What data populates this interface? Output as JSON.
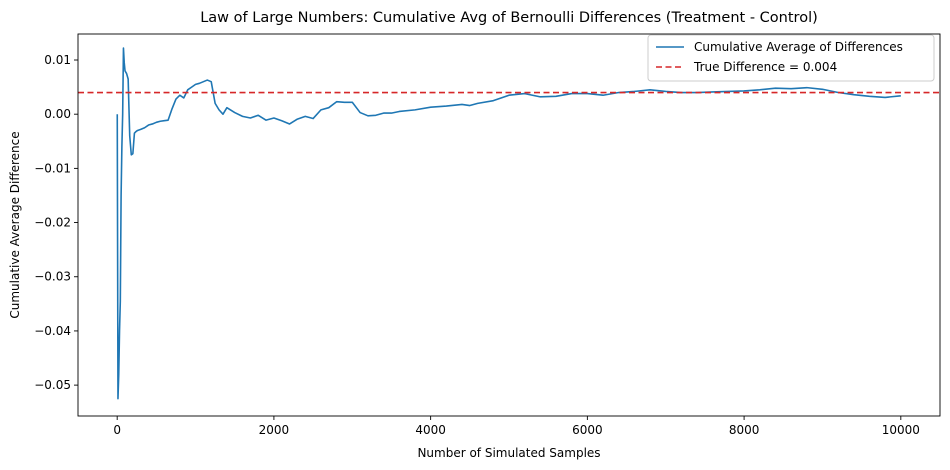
{
  "chart_data": {
    "type": "line",
    "title": "Law of Large Numbers: Cumulative Avg of Bernoulli Differences (Treatment - Control)",
    "xlabel": "Number of Simulated Samples",
    "ylabel": "Cumulative Average Difference",
    "xlim": [
      -500,
      10500
    ],
    "ylim": [
      -0.0557,
      0.0148
    ],
    "xticks": [
      0,
      2000,
      4000,
      6000,
      8000,
      10000
    ],
    "xtick_labels": [
      "0",
      "2000",
      "4000",
      "6000",
      "8000",
      "10000"
    ],
    "yticks": [
      -0.05,
      -0.04,
      -0.03,
      -0.02,
      -0.01,
      0.0,
      0.01
    ],
    "ytick_labels": [
      "−0.05",
      "−0.04",
      "−0.03",
      "−0.02",
      "−0.01",
      "0.00",
      "0.01"
    ],
    "grid": false,
    "legend_position": "top-right",
    "series": [
      {
        "name": "Cumulative Average of Differences",
        "color": "#1f77b4",
        "style": "solid",
        "x": [
          1,
          10,
          20,
          30,
          40,
          50,
          60,
          70,
          80,
          90,
          100,
          120,
          140,
          160,
          180,
          200,
          220,
          240,
          260,
          300,
          350,
          400,
          450,
          500,
          550,
          600,
          650,
          700,
          750,
          800,
          850,
          900,
          950,
          1000,
          1050,
          1100,
          1150,
          1200,
          1250,
          1300,
          1350,
          1400,
          1500,
          1600,
          1700,
          1800,
          1900,
          2000,
          2100,
          2200,
          2300,
          2400,
          2500,
          2600,
          2700,
          2800,
          2900,
          3000,
          3100,
          3200,
          3300,
          3400,
          3500,
          3600,
          3800,
          4000,
          4200,
          4400,
          4500,
          4600,
          4800,
          5000,
          5200,
          5400,
          5600,
          5800,
          6000,
          6200,
          6400,
          6600,
          6800,
          7000,
          7200,
          7400,
          7600,
          7800,
          8000,
          8200,
          8400,
          8600,
          8800,
          9000,
          9200,
          9400,
          9600,
          9800,
          10000
        ],
        "values": [
          0.0,
          -0.0525,
          -0.048,
          -0.04,
          -0.0345,
          -0.015,
          -0.006,
          0.0,
          0.0122,
          0.0095,
          0.008,
          0.0075,
          0.0065,
          -0.004,
          -0.0075,
          -0.0073,
          -0.0035,
          -0.0032,
          -0.003,
          -0.0028,
          -0.0025,
          -0.002,
          -0.0018,
          -0.0015,
          -0.0013,
          -0.0012,
          -0.0011,
          0.001,
          0.0028,
          0.0035,
          0.003,
          0.0045,
          0.005,
          0.0055,
          0.0057,
          0.006,
          0.0063,
          0.006,
          0.002,
          0.0008,
          0.0,
          0.0012,
          0.0003,
          -0.0004,
          -0.0007,
          -0.0002,
          -0.0011,
          -0.0007,
          -0.0012,
          -0.0018,
          -0.0009,
          -0.0004,
          -0.0008,
          0.0008,
          0.0012,
          0.0023,
          0.0022,
          0.0022,
          0.0003,
          -0.0003,
          -0.0002,
          0.0002,
          0.0002,
          0.0005,
          0.0008,
          0.0013,
          0.0015,
          0.0018,
          0.0016,
          0.002,
          0.0025,
          0.0035,
          0.0038,
          0.0032,
          0.0033,
          0.0038,
          0.0038,
          0.0035,
          0.004,
          0.0042,
          0.0045,
          0.0042,
          0.004,
          0.004,
          0.0041,
          0.0042,
          0.0043,
          0.0045,
          0.0048,
          0.0047,
          0.0049,
          0.0046,
          0.004,
          0.0036,
          0.0033,
          0.0031,
          0.0034
        ]
      },
      {
        "name": "True Difference = 0.004",
        "color": "#d62728",
        "style": "dashed",
        "hline": 0.004
      }
    ]
  }
}
